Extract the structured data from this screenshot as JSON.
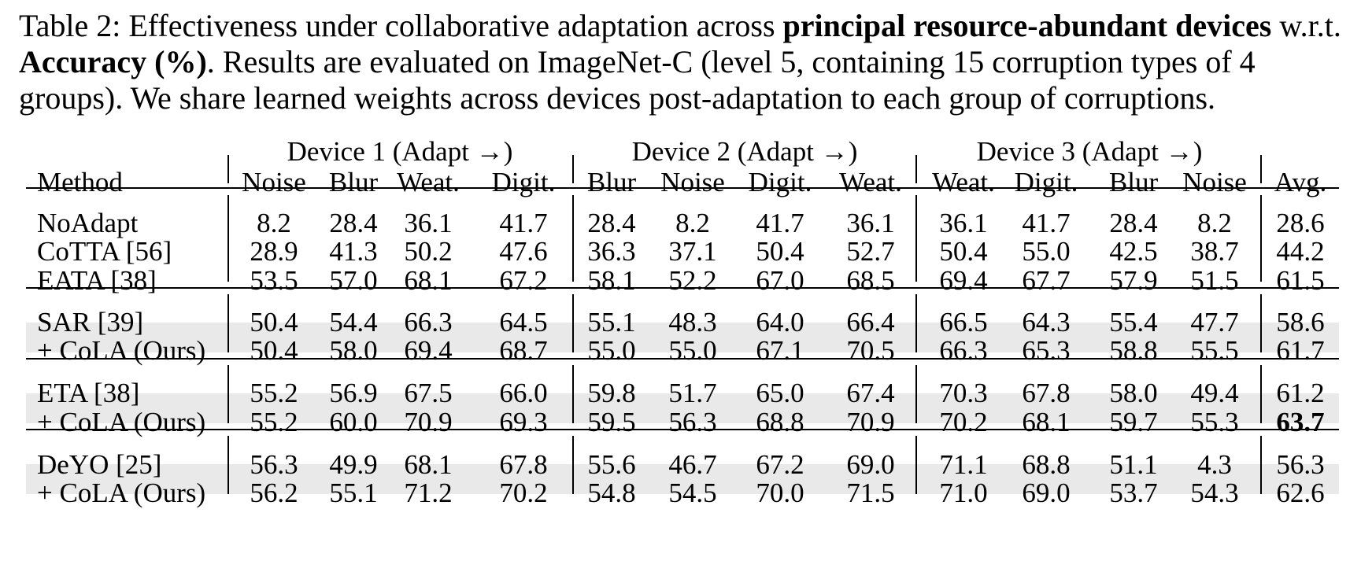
{
  "caption": {
    "prefix": "Table 2: Effectiveness under collaborative adaptation across ",
    "bold1": "principal resource-abundant devices",
    "mid1": " w.r.t. ",
    "bold2": "Accuracy (%)",
    "rest": ". Results are evaluated on ImageNet-C (level 5, containing 15 corruption types of 4 groups). We share learned weights across devices post-adaptation to each group of corruptions."
  },
  "table": {
    "device_headers": [
      "Device 1 (Adapt →)",
      "Device 2 (Adapt →)",
      "Device 3 (Adapt →)"
    ],
    "method_header": "Method",
    "columns": [
      "Noise",
      "Blur",
      "Weat.",
      "Digit.",
      "Blur",
      "Noise",
      "Digit.",
      "Weat.",
      "Weat.",
      "Digit.",
      "Blur",
      "Noise",
      "Avg."
    ],
    "rows": [
      {
        "method": "NoAdapt",
        "values": [
          "8.2",
          "28.4",
          "36.1",
          "41.7",
          "28.4",
          "8.2",
          "41.7",
          "36.1",
          "36.1",
          "41.7",
          "28.4",
          "8.2",
          "28.6"
        ]
      },
      {
        "method": "CoTTA [56]",
        "values": [
          "28.9",
          "41.3",
          "50.2",
          "47.6",
          "36.3",
          "37.1",
          "50.4",
          "52.7",
          "50.4",
          "55.0",
          "42.5",
          "38.7",
          "44.2"
        ]
      },
      {
        "method": "EATA [38]",
        "values": [
          "53.5",
          "57.0",
          "68.1",
          "67.2",
          "58.1",
          "52.2",
          "67.0",
          "68.5",
          "69.4",
          "67.7",
          "57.9",
          "51.5",
          "61.5"
        ]
      },
      {
        "method": "SAR [39]",
        "values": [
          "50.4",
          "54.4",
          "66.3",
          "64.5",
          "55.1",
          "48.3",
          "64.0",
          "66.4",
          "66.5",
          "64.3",
          "55.4",
          "47.7",
          "58.6"
        ]
      },
      {
        "method": "+ CoLA (Ours)",
        "values": [
          "50.4",
          "58.0",
          "69.4",
          "68.7",
          "55.0",
          "55.0",
          "67.1",
          "70.5",
          "66.3",
          "65.3",
          "58.8",
          "55.5",
          "61.7"
        ]
      },
      {
        "method": "ETA [38]",
        "values": [
          "55.2",
          "56.9",
          "67.5",
          "66.0",
          "59.8",
          "51.7",
          "65.0",
          "67.4",
          "70.3",
          "67.8",
          "58.0",
          "49.4",
          "61.2"
        ]
      },
      {
        "method": "+ CoLA (Ours)",
        "values": [
          "55.2",
          "60.0",
          "70.9",
          "69.3",
          "59.5",
          "56.3",
          "68.8",
          "70.9",
          "70.2",
          "68.1",
          "59.7",
          "55.3",
          "63.7"
        ]
      },
      {
        "method": "DeYO [25]",
        "values": [
          "56.3",
          "49.9",
          "68.1",
          "67.8",
          "55.6",
          "46.7",
          "67.2",
          "69.0",
          "71.1",
          "68.8",
          "51.1",
          "4.3",
          "56.3"
        ]
      },
      {
        "method": "+ CoLA (Ours)",
        "values": [
          "56.2",
          "55.1",
          "71.2",
          "70.2",
          "54.8",
          "54.5",
          "70.0",
          "71.5",
          "71.0",
          "69.0",
          "53.7",
          "54.3",
          "62.6"
        ]
      }
    ]
  }
}
